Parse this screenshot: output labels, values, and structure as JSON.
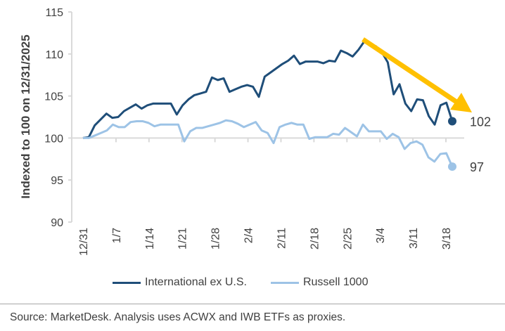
{
  "chart_data": {
    "type": "line",
    "ylabel": "Indexed to 100 on 12/31/2025",
    "ylim": [
      90,
      115
    ],
    "yticks": [
      90,
      95,
      100,
      105,
      110,
      115
    ],
    "xticks": [
      "12/31",
      "1/7",
      "1/14",
      "1/21",
      "1/28",
      "2/4",
      "2/11",
      "2/18",
      "2/25",
      "3/4",
      "3/11",
      "3/18"
    ],
    "grid": false,
    "legend": "bottom",
    "series": [
      {
        "name": "International ex U.S.",
        "color": "#1f4e79",
        "end_label": "102",
        "values": [
          100,
          100.1,
          101.5,
          102.2,
          102.9,
          102.4,
          102.5,
          103.2,
          103.6,
          104.0,
          103.5,
          103.9,
          104.1,
          104.1,
          104.1,
          104.1,
          102.8,
          103.9,
          104.6,
          105.1,
          105.3,
          105.5,
          107.2,
          106.9,
          107.1,
          105.5,
          105.8,
          106.1,
          106.3,
          106.1,
          104.9,
          107.3,
          107.8,
          108.3,
          108.8,
          109.2,
          109.8,
          108.8,
          109.1,
          109.1,
          109.1,
          108.9,
          109.2,
          109.1,
          110.4,
          110.1,
          109.7,
          110.5,
          111.5,
          111.2,
          110.9,
          110.2,
          109.0,
          105.2,
          106.4,
          104.1,
          103.2,
          104.6,
          104.5,
          102.6,
          101.6,
          103.9,
          104.2,
          102.0
        ]
      },
      {
        "name": "Russell 1000",
        "color": "#9dc3e6",
        "end_label": "97",
        "values": [
          100,
          100,
          100.3,
          100.6,
          100.9,
          101.6,
          101.3,
          101.3,
          101.9,
          102.0,
          102.0,
          101.8,
          101.4,
          101.6,
          101.6,
          101.6,
          101.6,
          99.6,
          100.8,
          101.2,
          101.2,
          101.4,
          101.6,
          101.8,
          102.1,
          102.0,
          101.7,
          101.3,
          101.6,
          101.9,
          100.9,
          100.6,
          99.4,
          101.3,
          101.6,
          101.8,
          101.6,
          101.6,
          99.9,
          100.1,
          100.1,
          100.1,
          100.5,
          100.4,
          101.2,
          100.7,
          100.2,
          101.6,
          100.8,
          100.8,
          100.8,
          99.9,
          100.5,
          100.1,
          98.7,
          99.4,
          99.6,
          99.2,
          97.7,
          97.2,
          98.1,
          98.2,
          96.6
        ]
      }
    ],
    "annotation_arrow_color": "#ffc000"
  },
  "source": "Source: MarketDesk. Analysis uses ACWX and IWB ETFs as proxies."
}
